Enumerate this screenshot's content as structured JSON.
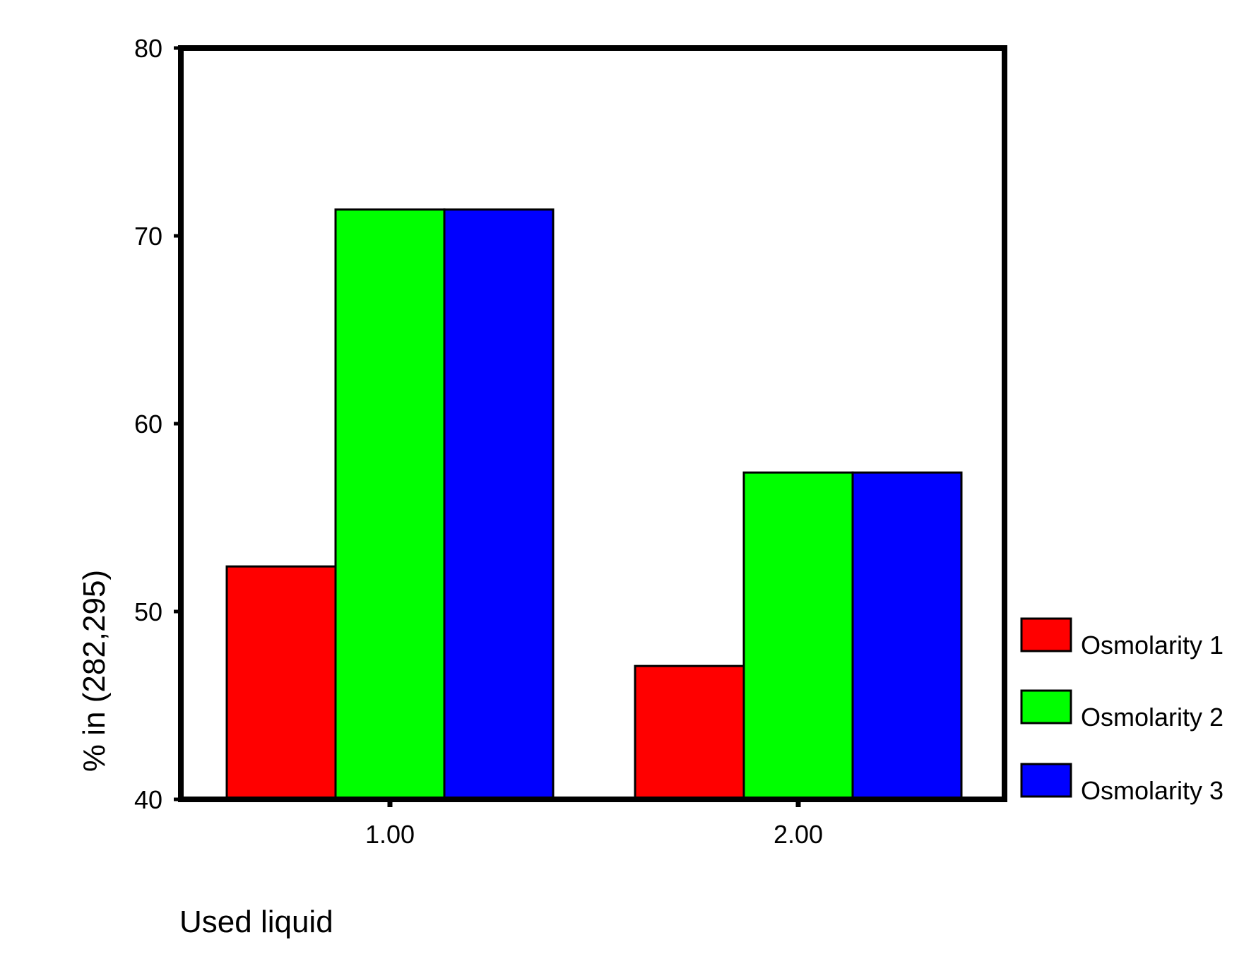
{
  "chart_data": {
    "type": "bar",
    "title": "",
    "xlabel": "Used liquid",
    "ylabel": "% in (282,295)",
    "categories": [
      "1.00",
      "2.00"
    ],
    "series": [
      {
        "name": "Osmolarity 1",
        "color": "#ff0000",
        "values": [
          52.4,
          47.1
        ]
      },
      {
        "name": "Osmolarity 2",
        "color": "#00ff00",
        "values": [
          71.4,
          57.4
        ]
      },
      {
        "name": "Osmolarity 3",
        "color": "#0000ff",
        "values": [
          71.4,
          57.4
        ]
      }
    ],
    "ylim": [
      40,
      80
    ],
    "yticks": [
      "40",
      "50",
      "60",
      "70",
      "80"
    ],
    "grid": false,
    "legend_position": "right-bottom"
  }
}
